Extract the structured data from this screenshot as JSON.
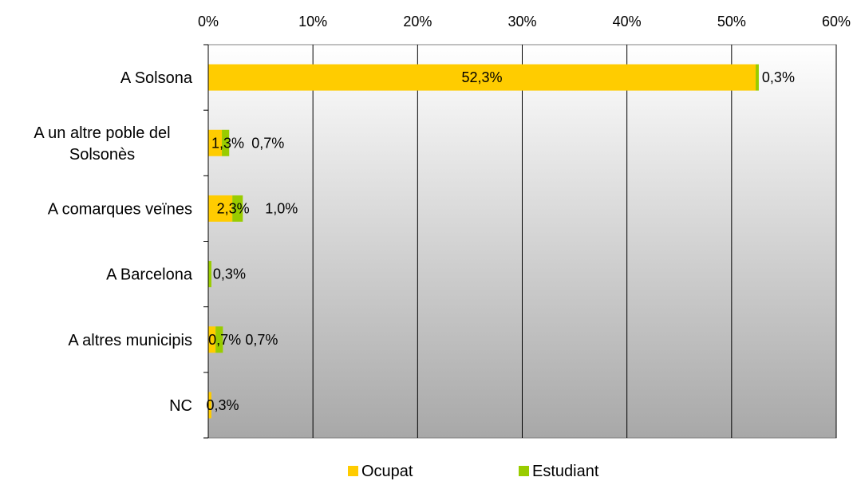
{
  "chart_data": {
    "type": "bar",
    "orientation": "horizontal",
    "stacked": true,
    "categories": [
      "A Solsona",
      "A un altre poble del Solsonès",
      "A comarques veïnes",
      "A Barcelona",
      "A altres municipis",
      "NC"
    ],
    "category_label_lines": [
      [
        "A Solsona"
      ],
      [
        "A un altre poble del",
        "Solsonès"
      ],
      [
        "A comarques veïnes"
      ],
      [
        "A Barcelona"
      ],
      [
        "A altres municipis"
      ],
      [
        "NC"
      ]
    ],
    "series": [
      {
        "name": "Ocupat",
        "color": "#FFCC00",
        "values": [
          52.3,
          1.3,
          2.3,
          0,
          0.7,
          0.3
        ],
        "labels": [
          "52,3%",
          "1,3%",
          "2,3%",
          "",
          "0,7%",
          "0,3%"
        ]
      },
      {
        "name": "Estudiant",
        "color": "#99CC00",
        "values": [
          0.3,
          0.7,
          1.0,
          0.3,
          0.7,
          0
        ],
        "labels": [
          "0,3%",
          "0,7%",
          "1,0%",
          "0,3%",
          "0,7%",
          ""
        ]
      }
    ],
    "xlim": [
      0,
      60
    ],
    "ticks": [
      0,
      10,
      20,
      30,
      40,
      50,
      60
    ],
    "tick_labels": [
      "0%",
      "10%",
      "20%",
      "30%",
      "40%",
      "50%",
      "60%"
    ],
    "x_axis_position": "top",
    "grid": true,
    "legend": "bottom",
    "title": "",
    "xlabel": "",
    "ylabel": ""
  }
}
